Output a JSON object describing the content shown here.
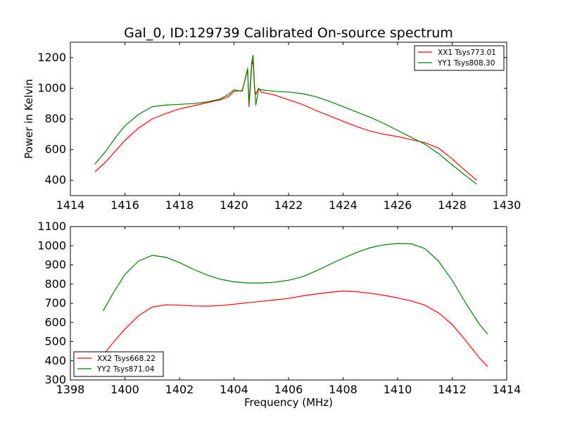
{
  "chart_data": [
    {
      "type": "line",
      "title": "Gal_0, ID:129739 Calibrated On-source spectrum",
      "xlabel": "",
      "ylabel": "Power in Kelvin",
      "xlim": [
        1414,
        1430
      ],
      "ylim": [
        300,
        1300
      ],
      "xticks": [
        1414,
        1416,
        1418,
        1420,
        1422,
        1424,
        1426,
        1428,
        1430
      ],
      "yticks": [
        400,
        600,
        800,
        1000,
        1200
      ],
      "grid": false,
      "legend_position": "top-right",
      "series": [
        {
          "name": "XX1 Tsys773.01",
          "color": "#ff0000",
          "x": [
            1414.9,
            1415.3,
            1415.7,
            1416.0,
            1416.5,
            1417.0,
            1417.5,
            1418.0,
            1418.5,
            1419.0,
            1419.5,
            1419.8,
            1420.0,
            1420.3,
            1420.5,
            1420.55,
            1420.6,
            1420.65,
            1420.7,
            1420.75,
            1420.8,
            1420.9,
            1421.0,
            1421.5,
            1422.0,
            1422.5,
            1423.0,
            1423.5,
            1424.0,
            1424.5,
            1425.0,
            1425.5,
            1426.0,
            1426.5,
            1427.0,
            1427.5,
            1428.0,
            1428.5,
            1428.9
          ],
          "y": [
            455,
            520,
            600,
            660,
            740,
            800,
            835,
            865,
            885,
            905,
            925,
            945,
            980,
            985,
            1120,
            880,
            1000,
            1150,
            1180,
            1000,
            960,
            1000,
            975,
            955,
            925,
            895,
            855,
            820,
            785,
            750,
            720,
            700,
            685,
            665,
            645,
            610,
            540,
            460,
            400
          ]
        },
        {
          "name": "YY1 Tsys808.30",
          "color": "#008000",
          "x": [
            1414.9,
            1415.3,
            1415.7,
            1416.0,
            1416.5,
            1417.0,
            1417.5,
            1418.0,
            1418.5,
            1419.0,
            1419.5,
            1419.8,
            1420.0,
            1420.3,
            1420.5,
            1420.55,
            1420.6,
            1420.65,
            1420.7,
            1420.75,
            1420.8,
            1420.9,
            1421.0,
            1421.5,
            1422.0,
            1422.5,
            1423.0,
            1423.5,
            1424.0,
            1424.5,
            1425.0,
            1425.5,
            1426.0,
            1426.5,
            1427.0,
            1427.5,
            1428.0,
            1428.5,
            1428.9
          ],
          "y": [
            505,
            590,
            690,
            755,
            830,
            880,
            890,
            895,
            900,
            910,
            930,
            960,
            990,
            980,
            1130,
            900,
            1020,
            1170,
            1215,
            1020,
            890,
            995,
            990,
            980,
            975,
            965,
            945,
            915,
            880,
            845,
            810,
            770,
            725,
            680,
            635,
            575,
            500,
            430,
            375
          ]
        }
      ]
    },
    {
      "type": "line",
      "title": "",
      "xlabel": "Frequency (MHz)",
      "ylabel": "",
      "xlim": [
        1398,
        1414
      ],
      "ylim": [
        300,
        1100
      ],
      "xticks": [
        1398,
        1400,
        1402,
        1404,
        1406,
        1408,
        1410,
        1412,
        1414
      ],
      "yticks": [
        300,
        400,
        500,
        600,
        700,
        800,
        900,
        1000,
        1100
      ],
      "grid": false,
      "legend_position": "bottom-left",
      "series": [
        {
          "name": "XX2 Tsys668.22",
          "color": "#ff0000",
          "x": [
            1399.2,
            1399.6,
            1400.0,
            1400.5,
            1401.0,
            1401.5,
            1402.0,
            1402.5,
            1403.0,
            1403.5,
            1404.0,
            1404.5,
            1405.0,
            1405.5,
            1406.0,
            1406.5,
            1407.0,
            1407.5,
            1408.0,
            1408.5,
            1409.0,
            1409.5,
            1410.0,
            1410.5,
            1411.0,
            1411.5,
            1412.0,
            1412.5,
            1413.0,
            1413.3
          ],
          "y": [
            430,
            500,
            565,
            635,
            680,
            692,
            690,
            686,
            685,
            688,
            695,
            703,
            710,
            718,
            725,
            738,
            748,
            757,
            764,
            760,
            752,
            742,
            728,
            712,
            690,
            650,
            590,
            505,
            415,
            370
          ]
        },
        {
          "name": "YY2 Tsys871.04",
          "color": "#008000",
          "x": [
            1399.2,
            1399.6,
            1400.0,
            1400.5,
            1401.0,
            1401.5,
            1402.0,
            1402.5,
            1403.0,
            1403.5,
            1404.0,
            1404.5,
            1405.0,
            1405.5,
            1406.0,
            1406.5,
            1407.0,
            1407.5,
            1408.0,
            1408.5,
            1409.0,
            1409.5,
            1410.0,
            1410.5,
            1411.0,
            1411.5,
            1412.0,
            1412.5,
            1413.0,
            1413.3
          ],
          "y": [
            660,
            760,
            850,
            920,
            950,
            940,
            912,
            878,
            848,
            825,
            812,
            806,
            806,
            810,
            820,
            838,
            868,
            902,
            935,
            965,
            990,
            1005,
            1012,
            1010,
            985,
            920,
            820,
            700,
            590,
            540
          ]
        }
      ]
    }
  ]
}
